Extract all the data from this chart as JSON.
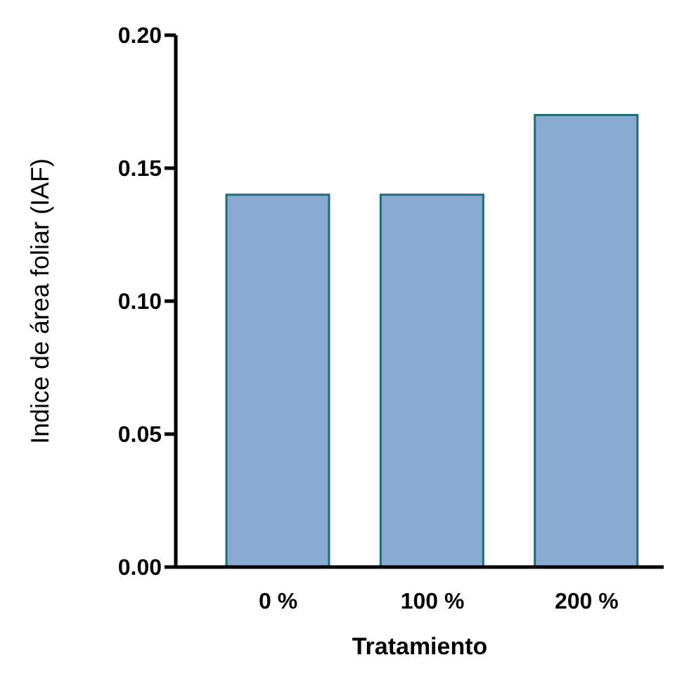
{
  "chart_data": {
    "type": "bar",
    "xlabel": "Tratamiento",
    "ylabel": "Indice de área foliar (IAF)",
    "categories": [
      "0 %",
      "100 %",
      "200 %"
    ],
    "values": [
      0.14,
      0.14,
      0.17
    ],
    "color": "#8aaad2",
    "ylim": [
      0,
      0.2
    ],
    "yticks": [
      {
        "value": 0,
        "label": "0.00"
      },
      {
        "value": 0.05,
        "label": "0.05"
      },
      {
        "value": 0.1,
        "label": "0.10"
      },
      {
        "value": 0.15,
        "label": "0.15"
      },
      {
        "value": 0.2,
        "label": "0.20"
      }
    ],
    "grid": false,
    "legend": false
  }
}
